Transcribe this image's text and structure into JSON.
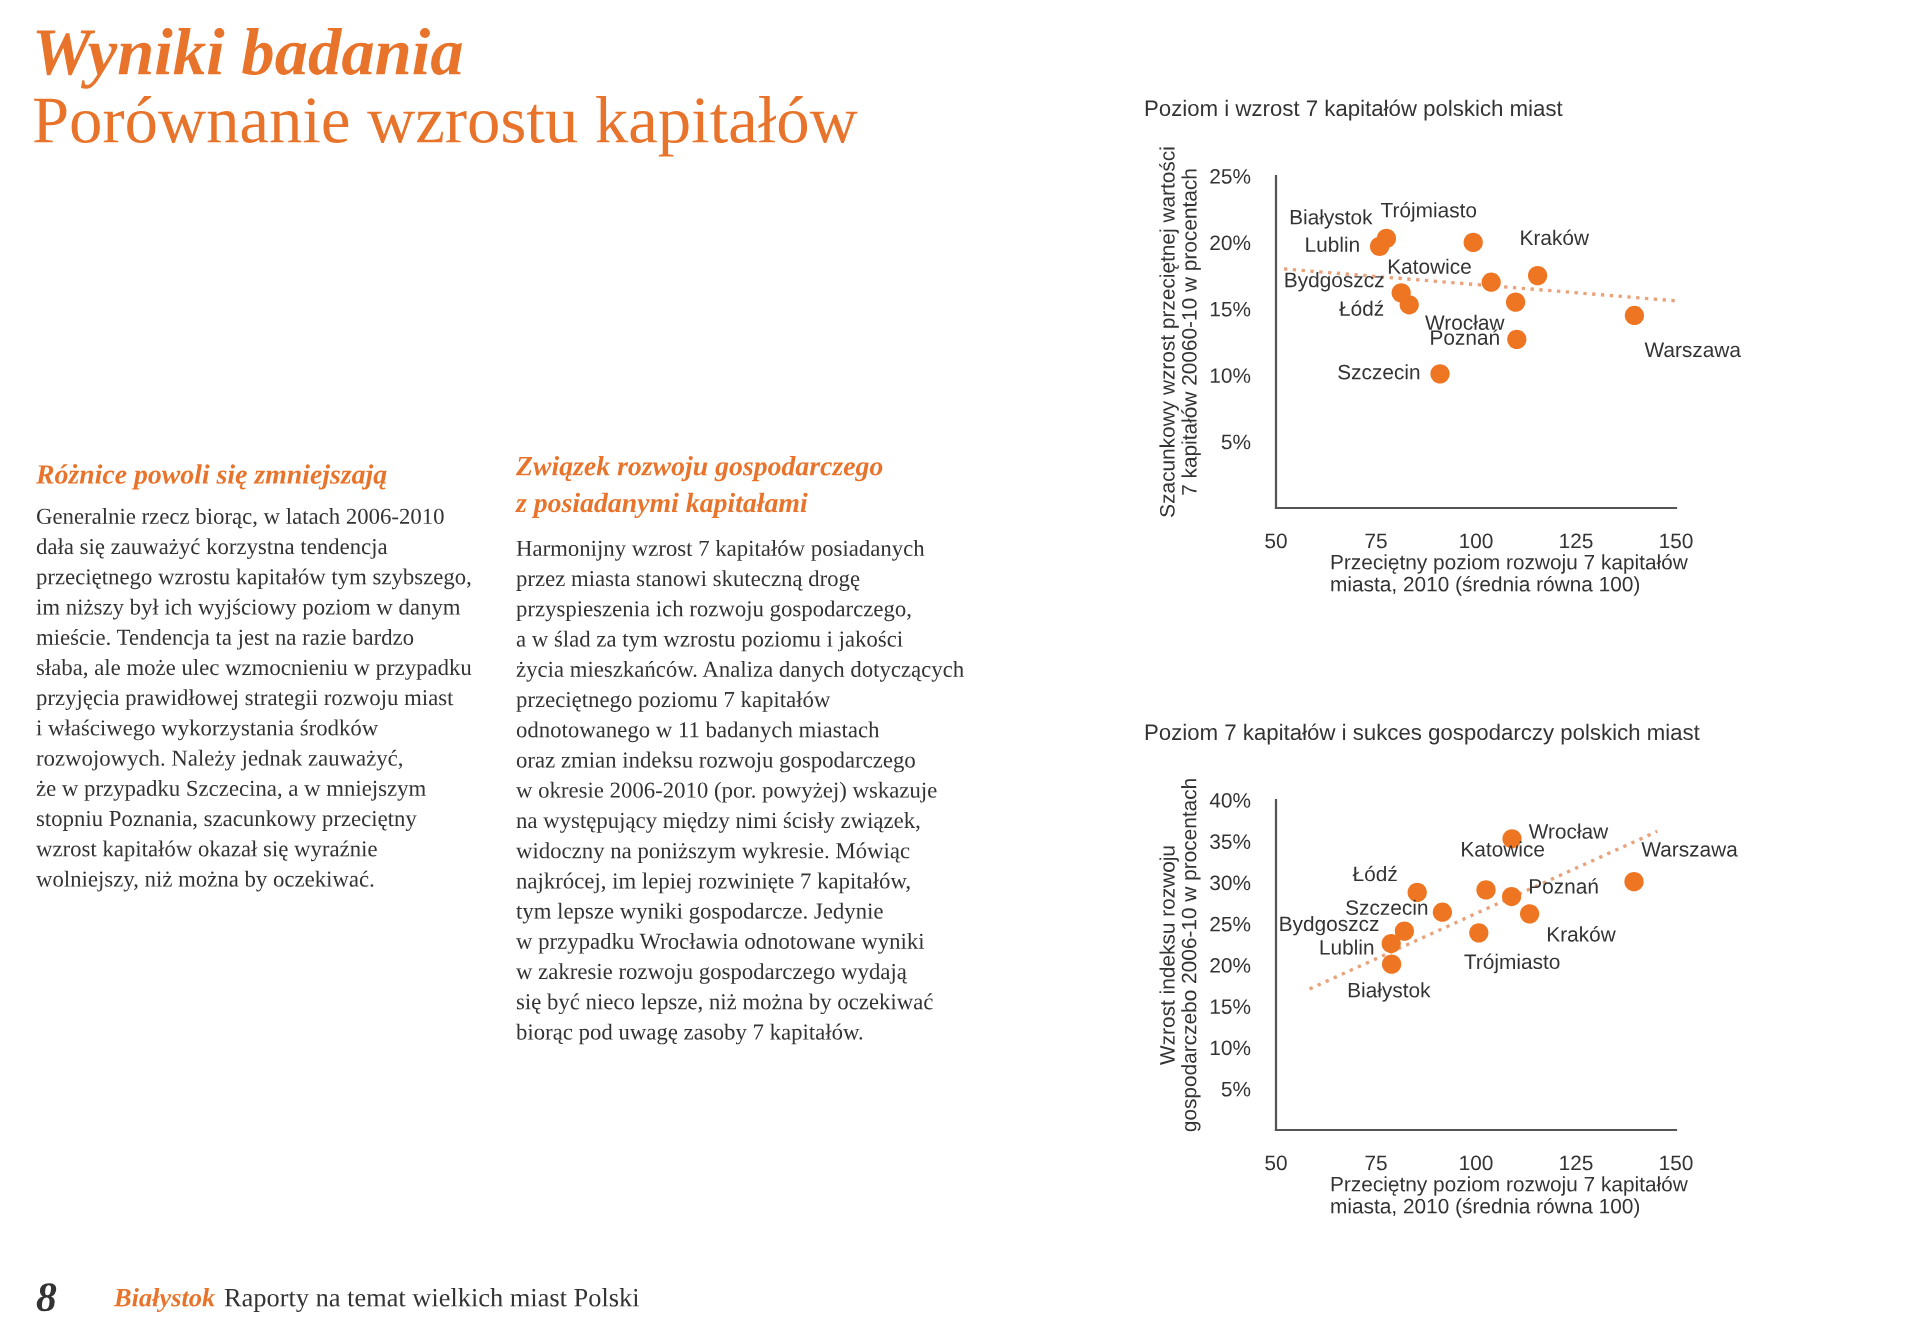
{
  "chart_data": [
    {
      "type": "other",
      "title": "Wyniki badania",
      "subtitle": "Porównanie wzrostu kapitałów",
      "color": "#e8732b",
      "annotations": [
        "Różnice powoli się zmniejszają",
        "Generalnie rzecz biorąc, w latach 2006-2010\ndała się zauważyć korzystna tendencja\nprzeciętnego wzrostu kapitałów tym szybszego,\nim niższy był ich wyjściowy poziom w danym\nmieście. Tendencja ta jest na razie bardzo\nsłaba, ale może ulec wzmocnieniu w przypadku\nprzyjęcia prawidłowej strategii rozwoju miast\ni właściwego wykorzystania środków\nrozwojowych. Należy jednak zauważyć,\nże w przypadku Szczecina, a w mniejszym\nstopniu Poznania, szacunkowy przeciętny\nwzrost kapitałów okazał się wyraźnie\nwolniejszy, niż można by oczekiwać.",
        "Związek rozwoju gospodarczego\nz posiadanymi kapitałami",
        "Harmonijny wzrost 7 kapitałów posiadanych\nprzez miasta stanowi skuteczną drogę\nprzyspieszenia ich rozwoju gospodarczego,\na w ślad za tym wzrostu poziomu i jakości\nżycia mieszkańców. Analiza danych dotyczących\nprzeciętnego poziomu 7 kapitałów\nodnotowanego w 11 badanych miastach\noraz zmian indeksu rozwoju gospodarczego\nw okresie 2006-2010 (por. powyżej) wskazuje\nna występujący między nimi ścisły związek,\nwidoczny na poniższym wykresie. Mówiąc\nnajkrócej, im lepiej rozwinięte 7 kapitałów,\ntym lepsze wyniki gospodarcze. Jedynie\nw przypadku Wrocławia odnotowane wyniki\nw zakresie rozwoju gospodarczego wydają\nsię być nieco lepsze, niż można by oczekiwać\nbiorąc pod uwagę zasoby 7 kapitałów.",
        "8",
        "Białystok",
        "Raporty na temat wielkich miast Polski"
      ]
    },
    {
      "type": "scatter",
      "title": "Poziom i wzrost 7 kapitałów polskich miast",
      "xlabel": "Przeciętny poziom rozwoju 7 kapitałów\nmiasta, 2010 (średnia równa 100)",
      "ylabel": "Szacunkowy wzrost przeciętnej wartości\n7 kapitałów 20060-10 w procentach",
      "xlim": [
        50,
        150
      ],
      "xticks": [
        50,
        75,
        100,
        125,
        150
      ],
      "ylim": [
        0,
        25
      ],
      "yticks": [
        {
          "value": 5,
          "label": "5%"
        },
        {
          "value": 10,
          "label": "10%"
        },
        {
          "value": 15,
          "label": "15%"
        },
        {
          "value": 20,
          "label": "20%"
        },
        {
          "value": 25,
          "label": "25%"
        }
      ],
      "grid": false,
      "series": [
        {
          "type": "scatter",
          "marker": "circle",
          "color": "#ee7623",
          "x": [
            77.6,
            75.9,
            99.3,
            103.8,
            115.4,
            81.3,
            83.3,
            109.9,
            110.2,
            91.0,
            139.6
          ],
          "values": [
            20.3,
            19.7,
            20.0,
            17.0,
            17.5,
            16.2,
            15.3,
            15.5,
            12.7,
            10.1,
            14.5
          ],
          "value_labels": [
            "Białystok",
            "Lublin",
            "Trójmiasto",
            "Katowice",
            "Kraków",
            "Bydgoszcz",
            "Łódź",
            "Wrocław",
            "Poznań",
            "Szczecin",
            "Warszawa"
          ]
        },
        {
          "type": "line",
          "color": "#e9a27c",
          "line_style": "dotted",
          "x": [
            52,
            150
          ],
          "values": [
            18.0,
            15.6
          ]
        }
      ]
    },
    {
      "type": "scatter",
      "title": "Poziom 7 kapitałów i sukces gospodarczy polskich miast",
      "xlabel": "Przeciętny poziom rozwoju 7 kapitałów\nmiasta, 2010 (średnia równa 100)",
      "ylabel": "Wzrost indeksu rozwoju\ngospodarczebo 2006-10 w procentach",
      "xlim": [
        50,
        150
      ],
      "xticks": [
        50,
        75,
        100,
        125,
        150
      ],
      "ylim": [
        0,
        40
      ],
      "yticks": [
        {
          "value": 5,
          "label": "5%"
        },
        {
          "value": 10,
          "label": "10%"
        },
        {
          "value": 15,
          "label": "15%"
        },
        {
          "value": 20,
          "label": "20%"
        },
        {
          "value": 25,
          "label": "25%"
        },
        {
          "value": 30,
          "label": "30%"
        },
        {
          "value": 35,
          "label": "35%"
        },
        {
          "value": 40,
          "label": "40%"
        }
      ],
      "grid": false,
      "series": [
        {
          "type": "scatter",
          "marker": "circle",
          "color": "#ee7623",
          "x": [
            109.0,
            102.5,
            139.5,
            85.3,
            108.9,
            91.6,
            113.4,
            82.1,
            100.7,
            78.8,
            78.9
          ],
          "values": [
            35.3,
            29.1,
            30.1,
            28.8,
            28.3,
            26.4,
            26.2,
            24.1,
            23.9,
            22.6,
            20.1
          ],
          "value_labels": [
            "Wrocław",
            "Katowice",
            "Warszawa",
            "Łódź",
            "Poznań",
            "Szczecin",
            "Kraków",
            "Bydgoszcz",
            "Trójmiasto",
            "Lublin",
            "Białystok"
          ]
        },
        {
          "type": "line",
          "color": "#e9a27c",
          "line_style": "dotted",
          "x": [
            58.4,
            145.3
          ],
          "values": [
            17.1,
            36.2
          ]
        }
      ]
    }
  ]
}
